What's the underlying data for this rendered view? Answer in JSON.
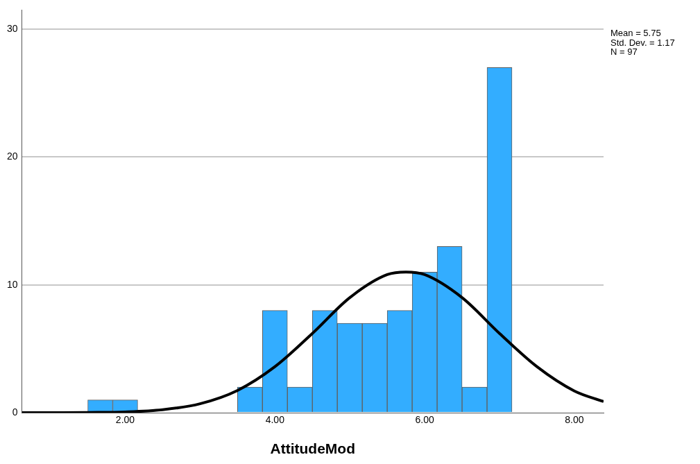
{
  "chart_data": {
    "type": "histogram",
    "xlabel": "AttitudeMod",
    "annotations": [
      "Mean = 5.75",
      "Std. Dev. = 1.17",
      "N = 97"
    ],
    "xlim": [
      0.62,
      8.39
    ],
    "xticks": [
      {
        "value": 2,
        "label": "2.00"
      },
      {
        "value": 4,
        "label": "4.00"
      },
      {
        "value": 6,
        "label": "6.00"
      },
      {
        "value": 8,
        "label": "8.00"
      }
    ],
    "ylim": [
      0,
      31.5
    ],
    "yticks": [
      0,
      10,
      20,
      30
    ],
    "grid": "y",
    "legend": false,
    "series": [
      {
        "color": "#33adff",
        "bins": [
          1.5,
          1.833,
          2.167,
          2.5,
          2.833,
          3.167,
          3.5,
          3.833,
          4.167,
          4.5,
          4.833,
          5.167,
          5.5,
          5.833,
          6.167,
          6.5,
          6.833,
          7.167
        ],
        "values": [
          1,
          1,
          0,
          0,
          0,
          0,
          2,
          8,
          2,
          8,
          7,
          7,
          8,
          11,
          13,
          2,
          27
        ]
      },
      {
        "type": "line",
        "color": "#000000",
        "x": [
          0.62,
          1,
          1.5,
          2,
          2.5,
          3,
          3.5,
          4,
          4.5,
          5,
          5.5,
          5.75,
          6,
          6.5,
          7,
          7.5,
          8,
          8.39
        ],
        "values": [
          0,
          0,
          0.02,
          0.06,
          0.23,
          0.7,
          1.74,
          3.6,
          6.2,
          9,
          10.8,
          11,
          10.8,
          9,
          6.2,
          3.6,
          1.7,
          0.87
        ]
      }
    ]
  }
}
